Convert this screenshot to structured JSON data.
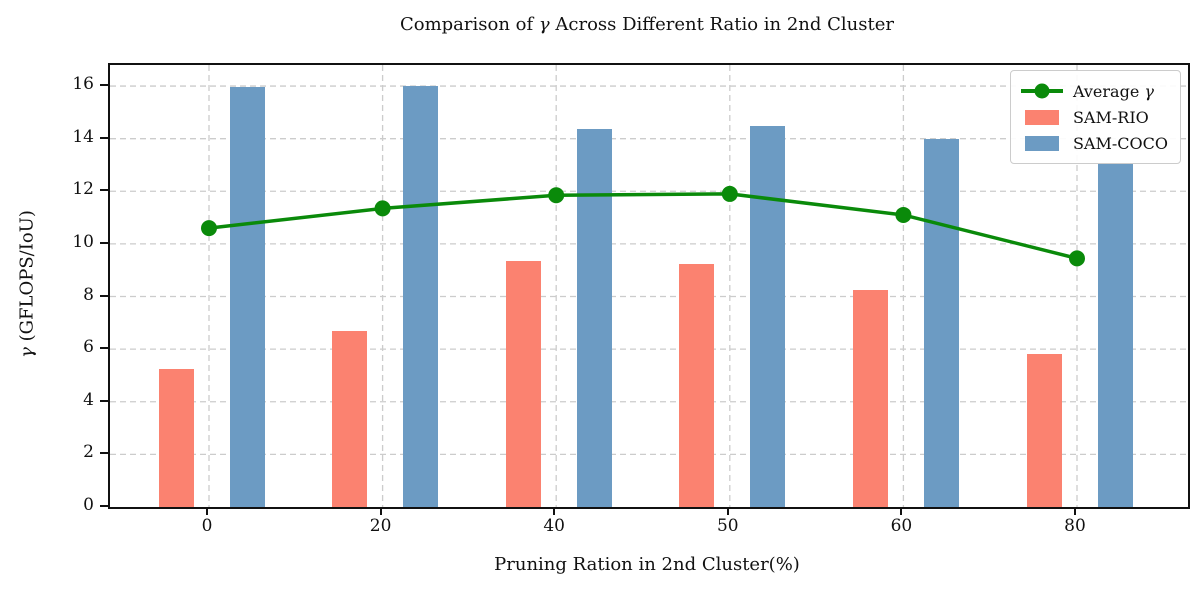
{
  "chart_data": {
    "type": "bar+line",
    "title": "Comparison of γ Across Different Ratio in 2nd Cluster",
    "xlabel": "Pruning Ration in 2nd Cluster(%)",
    "ylabel": "γ (GFLOPS/IoU)",
    "categories": [
      "0",
      "20",
      "40",
      "50",
      "60",
      "80"
    ],
    "y_ticks": [
      0,
      2,
      4,
      6,
      8,
      10,
      12,
      14,
      16
    ],
    "ylim": [
      0,
      16.8
    ],
    "grid": true,
    "legend_position": "upper right",
    "bar_series": [
      {
        "name": "SAM-RIO",
        "color": "#FB8270",
        "values": [
          5.25,
          6.7,
          9.35,
          9.25,
          8.25,
          5.8
        ]
      },
      {
        "name": "SAM-COCO",
        "color": "#6C9BC3",
        "values": [
          15.95,
          16.0,
          14.35,
          14.5,
          14.0,
          13.05
        ]
      }
    ],
    "line_series": {
      "name": "Average γ",
      "color": "#0a8a0a",
      "values": [
        10.6,
        11.35,
        11.85,
        11.9,
        11.1,
        9.45
      ]
    },
    "colors": {
      "grid": "#cccccc",
      "axis": "#111111",
      "background": "#ffffff"
    }
  }
}
